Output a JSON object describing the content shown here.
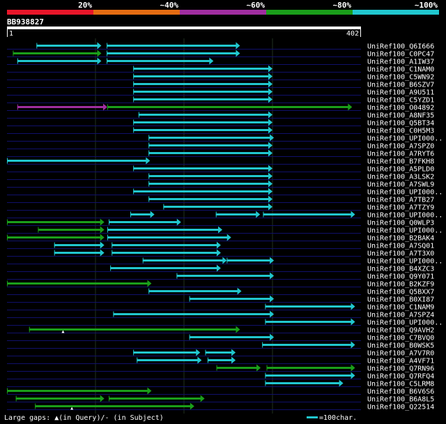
{
  "chart_data": {
    "type": "alignment-overview",
    "query_id": "BB938827",
    "query_start": "1",
    "query_end": "402",
    "query_length": 402,
    "identity_scale": [
      {
        "label": "20%",
        "color": "#e8162a"
      },
      {
        "label": "~40%",
        "color": "#e46c12"
      },
      {
        "label": "~60%",
        "color": "#a02ea0"
      },
      {
        "label": "~80%",
        "color": "#1a9e1a"
      },
      {
        "label": "~100%",
        "color": "#21c7cf"
      }
    ],
    "colors": {
      "high": "#21c7cf",
      "mid": "#1a9e1a",
      "low": "#a02ea0",
      "text": "#ffffff",
      "grid": "#1f2f1f",
      "row_line": "#10106a"
    },
    "hits": [
      {
        "name": "UniRef100_Q6I666",
        "segments": [
          {
            "start": 100,
            "end": 320,
            "color": "cyan"
          },
          {
            "start": 338,
            "end": 790,
            "color": "cyan"
          }
        ]
      },
      {
        "name": "UniRef100_C0PC47",
        "segments": [
          {
            "start": 20,
            "end": 320,
            "color": "green"
          },
          {
            "start": 338,
            "end": 790,
            "color": "cyan"
          }
        ]
      },
      {
        "name": "UniRef100_A1IW37",
        "segments": [
          {
            "start": 35,
            "end": 320,
            "color": "cyan"
          },
          {
            "start": 338,
            "end": 700,
            "color": "cyan"
          }
        ]
      },
      {
        "name": "UniRef100_C1NAM0",
        "segments": [
          {
            "start": 428,
            "end": 900,
            "color": "cyan"
          }
        ]
      },
      {
        "name": "UniRef100_C5WN92",
        "segments": [
          {
            "start": 428,
            "end": 900,
            "color": "cyan"
          }
        ]
      },
      {
        "name": "UniRef100_B6SZV7",
        "segments": [
          {
            "start": 428,
            "end": 900,
            "color": "cyan"
          }
        ]
      },
      {
        "name": "UniRef100_A9U511",
        "segments": [
          {
            "start": 428,
            "end": 900,
            "color": "cyan"
          }
        ]
      },
      {
        "name": "UniRef100_C5YZD1",
        "segments": [
          {
            "start": 428,
            "end": 900,
            "color": "cyan"
          }
        ]
      },
      {
        "name": "UniRef100_O04892",
        "segments": [
          {
            "start": 35,
            "end": 340,
            "color": "purple"
          },
          {
            "start": 340,
            "end": 1170,
            "color": "green"
          }
        ]
      },
      {
        "name": "UniRef100_A8NF35",
        "segments": [
          {
            "start": 446,
            "end": 900,
            "color": "cyan"
          }
        ]
      },
      {
        "name": "UniRef100_Q5BT34",
        "segments": [
          {
            "start": 428,
            "end": 900,
            "color": "cyan"
          }
        ]
      },
      {
        "name": "UniRef100_C0H5M3",
        "segments": [
          {
            "start": 428,
            "end": 900,
            "color": "cyan"
          }
        ]
      },
      {
        "name": "UniRef100_UPI000..",
        "segments": [
          {
            "start": 480,
            "end": 905,
            "color": "cyan"
          }
        ]
      },
      {
        "name": "UniRef100_A7SPZ0",
        "segments": [
          {
            "start": 480,
            "end": 900,
            "color": "cyan"
          }
        ]
      },
      {
        "name": "UniRef100_A7RYT6",
        "segments": [
          {
            "start": 480,
            "end": 900,
            "color": "cyan"
          }
        ]
      },
      {
        "name": "UniRef100_B7FKH8",
        "segments": [
          {
            "start": 0,
            "end": 485,
            "color": "cyan"
          }
        ]
      },
      {
        "name": "UniRef100_A5PLD0",
        "segments": [
          {
            "start": 428,
            "end": 900,
            "color": "cyan"
          }
        ]
      },
      {
        "name": "UniRef100_A3LSK2",
        "segments": [
          {
            "start": 480,
            "end": 900,
            "color": "cyan"
          }
        ]
      },
      {
        "name": "UniRef100_A7SWL9",
        "segments": [
          {
            "start": 480,
            "end": 900,
            "color": "cyan"
          }
        ]
      },
      {
        "name": "UniRef100_UPI000..",
        "segments": [
          {
            "start": 428,
            "end": 900,
            "color": "cyan"
          }
        ]
      },
      {
        "name": "UniRef100_A7TB27",
        "segments": [
          {
            "start": 480,
            "end": 900,
            "color": "cyan"
          }
        ]
      },
      {
        "name": "UniRef100_A7TZY9",
        "segments": [
          {
            "start": 530,
            "end": 900,
            "color": "cyan"
          }
        ]
      },
      {
        "name": "UniRef100_UPI000..",
        "segments": [
          {
            "start": 418,
            "end": 500,
            "color": "cyan"
          },
          {
            "start": 708,
            "end": 858,
            "color": "cyan"
          },
          {
            "start": 868,
            "end": 1180,
            "color": "cyan"
          }
        ]
      },
      {
        "name": "UniRef100_Q0WLP3",
        "segments": [
          {
            "start": 0,
            "end": 330,
            "color": "green"
          },
          {
            "start": 345,
            "end": 590,
            "color": "cyan"
          }
        ]
      },
      {
        "name": "UniRef100_UPI000..",
        "segments": [
          {
            "start": 105,
            "end": 330,
            "color": "green"
          },
          {
            "start": 340,
            "end": 730,
            "color": "cyan"
          }
        ]
      },
      {
        "name": "UniRef100_B2BAK4",
        "segments": [
          {
            "start": 0,
            "end": 330,
            "color": "green"
          },
          {
            "start": 340,
            "end": 760,
            "color": "cyan"
          }
        ]
      },
      {
        "name": "UniRef100_A7SQ01",
        "segments": [
          {
            "start": 160,
            "end": 330,
            "color": "cyan"
          },
          {
            "start": 355,
            "end": 725,
            "color": "cyan"
          }
        ]
      },
      {
        "name": "UniRef100_A7T3X0",
        "segments": [
          {
            "start": 160,
            "end": 330,
            "color": "cyan"
          },
          {
            "start": 355,
            "end": 725,
            "color": "cyan"
          }
        ]
      },
      {
        "name": "UniRef100_UPI000..",
        "segments": [
          {
            "start": 460,
            "end": 745,
            "color": "cyan"
          },
          {
            "start": 745,
            "end": 905,
            "color": "cyan"
          }
        ]
      },
      {
        "name": "UniRef100_B4XZC3",
        "segments": [
          {
            "start": 350,
            "end": 725,
            "color": "cyan"
          }
        ]
      },
      {
        "name": "UniRef100_Q9Y071",
        "segments": [
          {
            "start": 575,
            "end": 905,
            "color": "cyan"
          }
        ]
      },
      {
        "name": "UniRef100_B2KZF9",
        "segments": [
          {
            "start": 0,
            "end": 490,
            "color": "green"
          }
        ]
      },
      {
        "name": "UniRef100_Q5BXX7",
        "segments": [
          {
            "start": 480,
            "end": 795,
            "color": "cyan"
          }
        ]
      },
      {
        "name": "UniRef100_B0XI87",
        "segments": [
          {
            "start": 618,
            "end": 905,
            "color": "cyan"
          }
        ]
      },
      {
        "name": "UniRef100_C1NAM9",
        "segments": [
          {
            "start": 875,
            "end": 1180,
            "color": "cyan"
          }
        ]
      },
      {
        "name": "UniRef100_A7SPZ4",
        "segments": [
          {
            "start": 360,
            "end": 905,
            "color": "cyan"
          }
        ]
      },
      {
        "name": "UniRef100_UPI000..",
        "segments": [
          {
            "start": 875,
            "end": 1180,
            "color": "cyan"
          }
        ]
      },
      {
        "name": "UniRef100_Q9AVH2",
        "segments": [
          {
            "start": 75,
            "end": 790,
            "color": "green"
          }
        ]
      },
      {
        "name": "UniRef100_C7BVQ0",
        "segments": [
          {
            "start": 618,
            "end": 905,
            "color": "cyan"
          }
        ]
      },
      {
        "name": "UniRef100_B0WSK5",
        "segments": [
          {
            "start": 865,
            "end": 1180,
            "color": "cyan"
          }
        ]
      },
      {
        "name": "UniRef100_A7V7R0",
        "segments": [
          {
            "start": 428,
            "end": 655,
            "color": "cyan"
          },
          {
            "start": 672,
            "end": 775,
            "color": "cyan"
          }
        ]
      },
      {
        "name": "UniRef100_A4VF71",
        "segments": [
          {
            "start": 440,
            "end": 660,
            "color": "cyan"
          },
          {
            "start": 680,
            "end": 775,
            "color": "cyan"
          }
        ]
      },
      {
        "name": "UniRef100_Q7RN96",
        "segments": [
          {
            "start": 710,
            "end": 860,
            "color": "green"
          },
          {
            "start": 880,
            "end": 1180,
            "color": "green"
          }
        ]
      },
      {
        "name": "UniRef100_Q7RFQ4",
        "segments": [
          {
            "start": 875,
            "end": 1180,
            "color": "cyan"
          }
        ]
      },
      {
        "name": "UniRef100_C5LRM8",
        "segments": [
          {
            "start": 875,
            "end": 1140,
            "color": "cyan"
          }
        ]
      },
      {
        "name": "UniRef100_B6V6S6",
        "segments": [
          {
            "start": 0,
            "end": 490,
            "color": "green"
          }
        ]
      },
      {
        "name": "UniRef100_B6A8L5",
        "segments": [
          {
            "start": 30,
            "end": 330,
            "color": "green"
          },
          {
            "start": 345,
            "end": 670,
            "color": "green"
          }
        ]
      },
      {
        "name": "UniRef100_Q22514",
        "segments": [
          {
            "start": 95,
            "end": 635,
            "color": "green"
          }
        ]
      }
    ],
    "gap_marks": [
      {
        "row": 37,
        "pos": 190
      },
      {
        "row": 47,
        "pos": 220
      }
    ],
    "footer": {
      "gaps_text": "Large gaps: ▲(in Query)/- (in Subject)",
      "scale_text": "=100char."
    }
  }
}
